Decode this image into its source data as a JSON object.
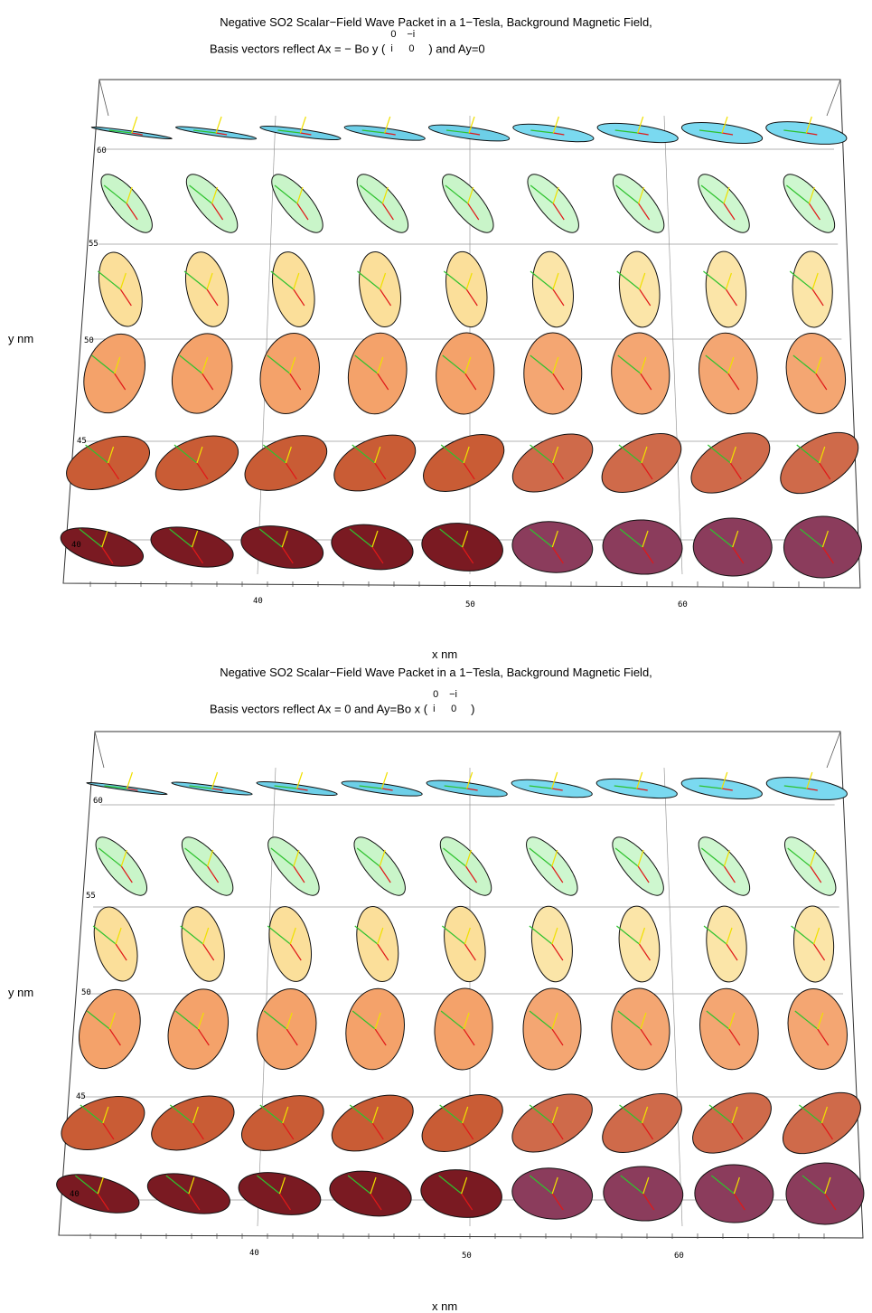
{
  "panels": [
    {
      "title": "Negative SO2 Scalar−Field Wave Packet in a 1−Tesla, Background Magnetic Field,",
      "subtitle_prefix": "Basis vectors reflect Ax = − Bo y (",
      "subtitle_suffix": ")  and  Ay=0",
      "matrix": [
        "0",
        "−i",
        "i",
        "0"
      ],
      "xlabel": "x nm",
      "ylabel": "y nm",
      "xticks": [
        "40",
        "50",
        "60"
      ],
      "yticks": [
        "60",
        "55",
        "50",
        "45",
        "40"
      ]
    },
    {
      "title": "Negative SO2 Scalar−Field Wave Packet in a 1−Tesla, Background Magnetic Field,",
      "subtitle_prefix": "Basis vectors reflect Ax = 0  and  Ay=Bo x (",
      "subtitle_suffix": ")",
      "matrix": [
        "0",
        "−i",
        "i",
        "0"
      ],
      "xlabel": "x nm",
      "ylabel": "y nm",
      "xticks": [
        "40",
        "50",
        "60"
      ],
      "yticks": [
        "60",
        "55",
        "50",
        "45",
        "40"
      ]
    }
  ],
  "colors": {
    "row_fills": [
      "#6dcfe8",
      "#c9f5c9",
      "#fbdf9a",
      "#f4a26a",
      "#c95c35",
      "#7a1a22"
    ],
    "row_fills_right": [
      "#7ad9f0",
      "#cef7cf",
      "#fbe5a8",
      "#f4a672",
      "#cf6a4a",
      "#8b3c5c"
    ],
    "vector_green": "#2ec22e",
    "vector_red": "#e01818",
    "vector_yellow": "#f0e000",
    "grid": "#9a9a9a"
  }
}
